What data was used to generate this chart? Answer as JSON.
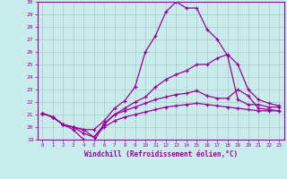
{
  "xlabel": "Windchill (Refroidissement éolien,°C)",
  "background_color": "#c8ecec",
  "line_color": "#990099",
  "grid_color": "#b0c8c8",
  "xlim": [
    -0.5,
    23.5
  ],
  "ylim": [
    19,
    30
  ],
  "yticks": [
    19,
    20,
    21,
    22,
    23,
    24,
    25,
    26,
    27,
    28,
    29,
    30
  ],
  "xticks": [
    0,
    1,
    2,
    3,
    4,
    5,
    6,
    7,
    8,
    9,
    10,
    11,
    12,
    13,
    14,
    15,
    16,
    17,
    18,
    19,
    20,
    21,
    22,
    23
  ],
  "series": [
    {
      "x": [
        0,
        1,
        2,
        3,
        4,
        5,
        6,
        7,
        8,
        9,
        10,
        11,
        12,
        13,
        14,
        15,
        16,
        17,
        18,
        19,
        20,
        21,
        22,
        23
      ],
      "y": [
        21.1,
        20.8,
        20.2,
        20.0,
        19.8,
        19.8,
        20.5,
        21.5,
        22.1,
        23.2,
        26.0,
        27.3,
        29.2,
        30.0,
        29.5,
        29.5,
        27.8,
        27.0,
        25.7,
        22.2,
        21.8,
        21.8,
        21.6,
        21.6
      ]
    },
    {
      "x": [
        0,
        1,
        2,
        3,
        4,
        5,
        6,
        7,
        8,
        9,
        10,
        11,
        12,
        13,
        14,
        15,
        16,
        17,
        18,
        19,
        20,
        21,
        22,
        23
      ],
      "y": [
        21.1,
        20.8,
        20.2,
        19.8,
        19.0,
        18.8,
        20.3,
        21.0,
        21.5,
        22.0,
        22.4,
        23.2,
        23.8,
        24.2,
        24.5,
        25.0,
        25.0,
        25.5,
        25.8,
        25.0,
        23.0,
        22.2,
        21.9,
        21.7
      ]
    },
    {
      "x": [
        0,
        1,
        2,
        3,
        4,
        5,
        6,
        7,
        8,
        9,
        10,
        11,
        12,
        13,
        14,
        15,
        16,
        17,
        18,
        19,
        20,
        21,
        22,
        23
      ],
      "y": [
        21.1,
        20.8,
        20.2,
        20.0,
        19.8,
        19.2,
        20.2,
        21.0,
        21.3,
        21.6,
        21.9,
        22.2,
        22.4,
        22.6,
        22.7,
        22.9,
        22.5,
        22.3,
        22.3,
        23.0,
        22.5,
        21.5,
        21.4,
        21.3
      ]
    },
    {
      "x": [
        0,
        1,
        2,
        3,
        4,
        5,
        6,
        7,
        8,
        9,
        10,
        11,
        12,
        13,
        14,
        15,
        16,
        17,
        18,
        19,
        20,
        21,
        22,
        23
      ],
      "y": [
        21.1,
        20.8,
        20.2,
        20.0,
        19.5,
        19.2,
        20.0,
        20.5,
        20.8,
        21.0,
        21.2,
        21.4,
        21.6,
        21.7,
        21.8,
        21.9,
        21.8,
        21.7,
        21.6,
        21.5,
        21.4,
        21.3,
        21.3,
        21.3
      ]
    }
  ]
}
